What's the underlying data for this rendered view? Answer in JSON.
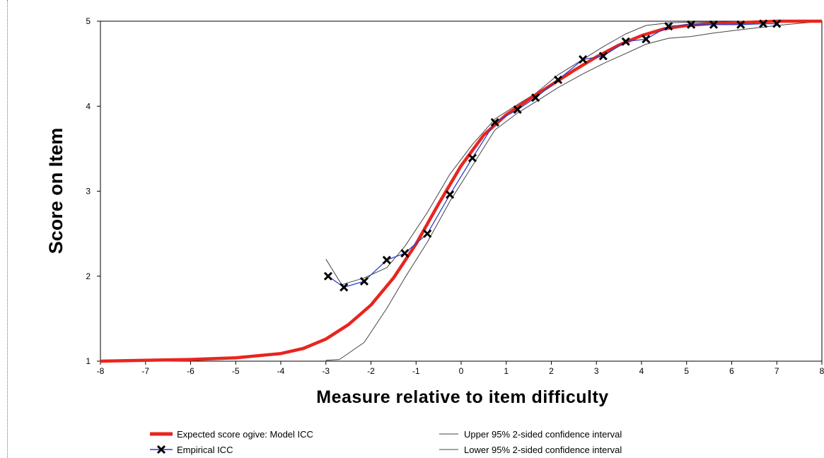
{
  "chart_data": {
    "type": "line",
    "xlabel": "Measure relative to item difficulty",
    "ylabel": "Score on Item",
    "xlim": [
      -8,
      8
    ],
    "ylim": [
      1,
      5
    ],
    "x_ticks": [
      -8,
      -7,
      -6,
      -5,
      -4,
      -3,
      -2,
      -1,
      0,
      1,
      2,
      3,
      4,
      5,
      6,
      7,
      8
    ],
    "y_ticks": [
      1,
      2,
      3,
      4,
      5
    ],
    "legend_position": "bottom",
    "series": [
      {
        "name": "Expected score ogive: Model ICC",
        "color": "#e8251e",
        "style": "thick-line",
        "x": [
          -8,
          -7,
          -6,
          -5,
          -4,
          -3.5,
          -3,
          -2.5,
          -2,
          -1.5,
          -1,
          -0.5,
          0,
          0.5,
          1,
          1.5,
          2,
          2.5,
          3,
          3.5,
          4,
          4.5,
          5,
          5.5,
          6,
          6.5,
          7,
          7.5,
          8
        ],
        "y": [
          1.0,
          1.01,
          1.02,
          1.04,
          1.09,
          1.15,
          1.26,
          1.43,
          1.66,
          1.98,
          2.38,
          2.85,
          3.3,
          3.66,
          3.9,
          4.08,
          4.25,
          4.42,
          4.58,
          4.72,
          4.83,
          4.91,
          4.95,
          4.97,
          4.98,
          4.99,
          5.0,
          5.0,
          5.0
        ]
      },
      {
        "name": "Empirical ICC",
        "color": "#2a3fd6",
        "marker_color": "#000000",
        "style": "line-x-markers",
        "x": [
          -2.95,
          -2.6,
          -2.15,
          -1.65,
          -1.25,
          -0.75,
          -0.25,
          0.25,
          0.75,
          1.25,
          1.65,
          2.15,
          2.7,
          3.15,
          3.65,
          4.1,
          4.6,
          5.1,
          5.6,
          6.2,
          6.7,
          7.0
        ],
        "y": [
          2.0,
          1.87,
          1.94,
          2.19,
          2.27,
          2.5,
          2.96,
          3.39,
          3.81,
          3.96,
          4.1,
          4.31,
          4.55,
          4.59,
          4.76,
          4.79,
          4.94,
          4.96,
          4.96,
          4.96,
          4.97,
          4.97
        ]
      },
      {
        "name": "Upper 95% 2-sided confidence interval",
        "color": "#444444",
        "style": "thin-line",
        "x": [
          -3.0,
          -2.65,
          -2.15,
          -1.65,
          -1.25,
          -0.75,
          -0.25,
          0.25,
          0.75,
          1.25,
          1.65,
          2.15,
          2.7,
          3.15,
          3.65,
          4.1,
          4.6,
          5.1,
          5.6,
          6.2,
          6.7,
          7.0,
          8
        ],
        "y": [
          2.2,
          1.9,
          1.98,
          2.1,
          2.35,
          2.75,
          3.2,
          3.55,
          3.85,
          4.02,
          4.15,
          4.37,
          4.55,
          4.7,
          4.85,
          4.95,
          4.98,
          4.99,
          4.99,
          4.99,
          4.99,
          5.0,
          5.0
        ]
      },
      {
        "name": "Lower 95% 2-sided confidence interval",
        "color": "#444444",
        "style": "thin-line",
        "x": [
          -3.0,
          -2.7,
          -2.15,
          -1.65,
          -1.25,
          -0.75,
          -0.25,
          0.25,
          0.75,
          1.25,
          1.65,
          2.15,
          2.7,
          3.15,
          3.65,
          4.1,
          4.6,
          5.1,
          5.6,
          6.2,
          6.7,
          7.0,
          8
        ],
        "y": [
          1.01,
          1.02,
          1.22,
          1.62,
          1.98,
          2.4,
          2.88,
          3.3,
          3.72,
          3.92,
          4.05,
          4.22,
          4.38,
          4.5,
          4.62,
          4.73,
          4.8,
          4.82,
          4.86,
          4.9,
          4.93,
          4.95,
          5.0
        ]
      }
    ]
  }
}
